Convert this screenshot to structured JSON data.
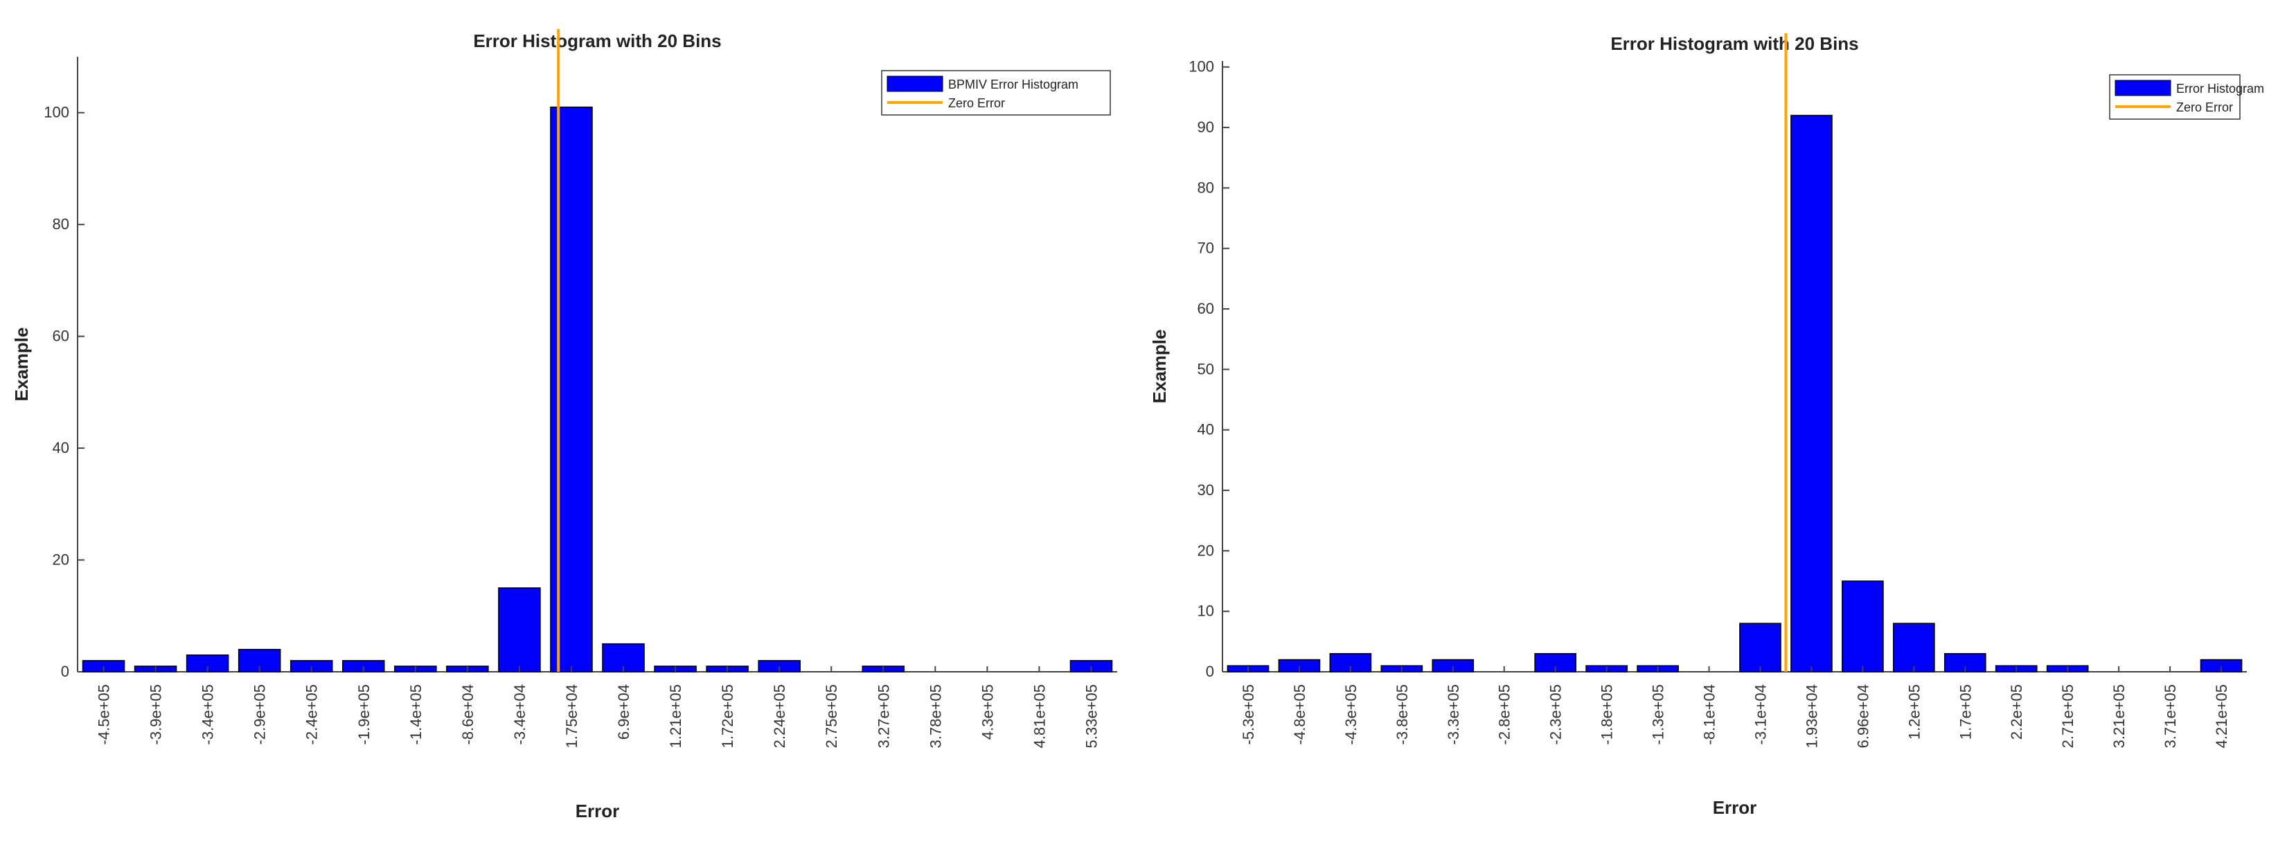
{
  "chart_data": [
    {
      "type": "bar",
      "title": "Error Histogram with 20 Bins",
      "xlabel": "Error",
      "ylabel": "Example",
      "ylim": [
        0,
        110
      ],
      "yticks": [
        0,
        20,
        40,
        60,
        80,
        100
      ],
      "grid": false,
      "legend_position": "top-right",
      "categories": [
        "-4.5e+05",
        "-3.9e+05",
        "-3.4e+05",
        "-2.9e+05",
        "-2.4e+05",
        "-1.9e+05",
        "-1.4e+05",
        "-8.6e+04",
        "-3.4e+04",
        "1.75e+04",
        "6.9e+04",
        "1.21e+05",
        "1.72e+05",
        "2.24e+05",
        "2.75e+05",
        "3.27e+05",
        "3.78e+05",
        "4.3e+05",
        "4.81e+05",
        "5.33e+05"
      ],
      "series": [
        {
          "name": "BPMIV Error Histogram",
          "values": [
            2,
            1,
            3,
            4,
            2,
            2,
            1,
            1,
            15,
            101,
            5,
            1,
            1,
            2,
            0,
            1,
            0,
            0,
            0,
            2
          ]
        }
      ],
      "reference_line": {
        "name": "Zero Error",
        "x_between_bins": [
          8,
          9
        ],
        "fraction": 0.75
      },
      "colors": {
        "bar": "#0000ff",
        "zero_line": "#ffa500"
      }
    },
    {
      "type": "bar",
      "title": "Error Histogram with 20 Bins",
      "xlabel": "Error",
      "ylabel": "Example",
      "ylim": [
        0,
        101
      ],
      "yticks": [
        0,
        10,
        20,
        30,
        40,
        50,
        60,
        70,
        80,
        90,
        100
      ],
      "grid": false,
      "legend_position": "top-right",
      "categories": [
        "-5.3e+05",
        "-4.8e+05",
        "-4.3e+05",
        "-3.8e+05",
        "-3.3e+05",
        "-2.8e+05",
        "-2.3e+05",
        "-1.8e+05",
        "-1.3e+05",
        "-8.1e+04",
        "-3.1e+04",
        "1.93e+04",
        "6.96e+04",
        "1.2e+05",
        "1.7e+05",
        "2.2e+05",
        "2.71e+05",
        "3.21e+05",
        "3.71e+05",
        "4.21e+05"
      ],
      "series": [
        {
          "name": "Error Histogram",
          "values": [
            1,
            2,
            3,
            1,
            2,
            0,
            3,
            1,
            1,
            0,
            8,
            92,
            15,
            8,
            3,
            1,
            1,
            0,
            0,
            2
          ]
        }
      ],
      "reference_line": {
        "name": "Zero Error",
        "x_between_bins": [
          10,
          11
        ],
        "fraction": 0.5
      },
      "colors": {
        "bar": "#0000ff",
        "zero_line": "#ffa500"
      }
    }
  ]
}
